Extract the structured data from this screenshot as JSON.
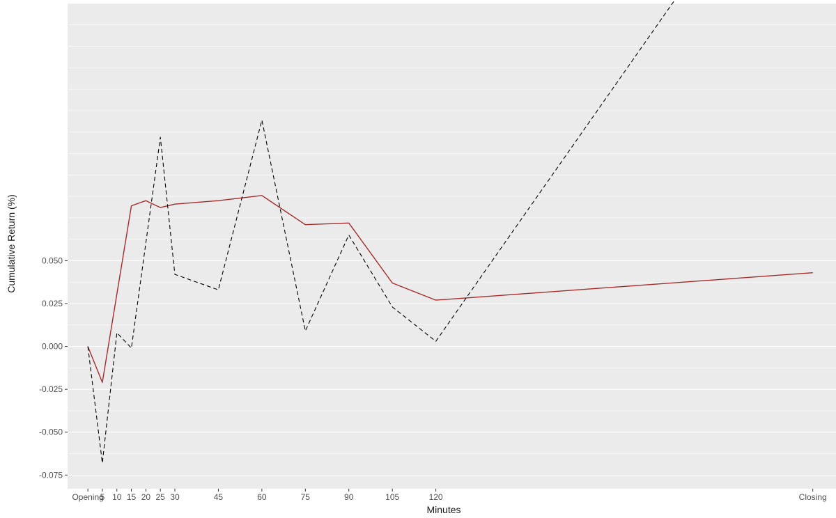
{
  "chart_data": {
    "type": "line",
    "title": "",
    "xlabel": "Minutes",
    "ylabel": "Cumulative Return (%)",
    "x_categories": [
      "Opening",
      "5",
      "10",
      "15",
      "20",
      "25",
      "30",
      "45",
      "60",
      "75",
      "90",
      "105",
      "120",
      "Closing"
    ],
    "x_positions": [
      0,
      5,
      10,
      15,
      20,
      25,
      30,
      45,
      60,
      75,
      90,
      105,
      120,
      250
    ],
    "y_ticks": [
      -0.075,
      -0.05,
      -0.025,
      0.0,
      0.025,
      0.05
    ],
    "y_tick_labels": [
      "-0.075",
      "-0.050",
      "-0.025",
      "0.000",
      "0.025",
      "0.050"
    ],
    "ylim": [
      -0.083,
      0.2
    ],
    "xlim": [
      -7,
      258
    ],
    "grid": true,
    "background": "#ebebeb",
    "grid_color": "#ffffff",
    "series": [
      {
        "style": "solid",
        "color": "#a52a2a",
        "x": [
          0,
          5,
          15,
          20,
          25,
          30,
          45,
          60,
          75,
          90,
          105,
          120,
          250
        ],
        "y": [
          0.0,
          -0.021,
          0.082,
          0.085,
          0.081,
          0.083,
          0.085,
          0.088,
          0.071,
          0.072,
          0.037,
          0.027,
          0.043
        ]
      },
      {
        "style": "dashed",
        "color": "#000000",
        "x": [
          0,
          5,
          10,
          15,
          25,
          30,
          45,
          60,
          75,
          90,
          105,
          120,
          250
        ],
        "y": [
          0.0,
          -0.068,
          0.008,
          -0.001,
          0.122,
          0.042,
          0.033,
          0.132,
          0.009,
          0.065,
          0.023,
          0.003,
          0.317
        ]
      }
    ]
  }
}
